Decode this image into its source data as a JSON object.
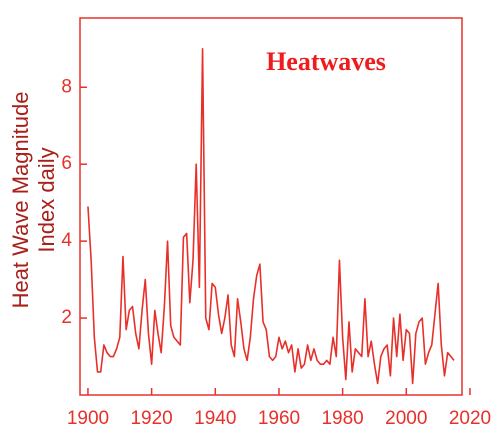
{
  "chart_data": {
    "type": "line",
    "title": "Heatwaves",
    "ylabel": [
      "Heat Wave Magnitude",
      "Index daily"
    ],
    "color": "#e8302a",
    "grid": false,
    "xlim": [
      1897.5,
      2017.5
    ],
    "xticks": [
      1900,
      1920,
      1940,
      1960,
      1980,
      2000,
      2020
    ],
    "ylim": [
      0,
      9.8
    ],
    "yticks": [
      2,
      4,
      6,
      8
    ],
    "x": [
      1900,
      1901,
      1902,
      1903,
      1904,
      1905,
      1906,
      1907,
      1908,
      1909,
      1910,
      1911,
      1912,
      1913,
      1914,
      1915,
      1916,
      1917,
      1918,
      1919,
      1920,
      1921,
      1922,
      1923,
      1924,
      1925,
      1926,
      1927,
      1928,
      1929,
      1930,
      1931,
      1932,
      1933,
      1934,
      1935,
      1936,
      1937,
      1938,
      1939,
      1940,
      1941,
      1942,
      1943,
      1944,
      1945,
      1946,
      1947,
      1948,
      1949,
      1950,
      1951,
      1952,
      1953,
      1954,
      1955,
      1956,
      1957,
      1958,
      1959,
      1960,
      1961,
      1962,
      1963,
      1964,
      1965,
      1966,
      1967,
      1968,
      1969,
      1970,
      1971,
      1972,
      1973,
      1974,
      1975,
      1976,
      1977,
      1978,
      1979,
      1980,
      1981,
      1982,
      1983,
      1984,
      1985,
      1986,
      1987,
      1988,
      1989,
      1990,
      1991,
      1992,
      1993,
      1994,
      1995,
      1996,
      1997,
      1998,
      1999,
      2000,
      2001,
      2002,
      2003,
      2004,
      2005,
      2006,
      2007,
      2008,
      2009,
      2010,
      2011,
      2012,
      2013,
      2014,
      2015
    ],
    "series": [
      {
        "name": "Heatwaves",
        "color": "#e8302a",
        "values": [
          4.9,
          3.5,
          1.5,
          0.6,
          0.6,
          1.3,
          1.1,
          1.0,
          1.0,
          1.2,
          1.5,
          3.6,
          1.7,
          2.2,
          2.3,
          1.6,
          1.2,
          2.2,
          3.0,
          1.6,
          0.8,
          2.2,
          1.6,
          1.1,
          2.3,
          4.0,
          1.8,
          1.5,
          1.4,
          1.3,
          4.1,
          4.2,
          2.4,
          3.5,
          6.0,
          2.8,
          9.0,
          2.0,
          1.7,
          2.9,
          2.8,
          2.1,
          1.6,
          2.0,
          2.6,
          1.3,
          1.0,
          2.5,
          1.9,
          1.2,
          0.9,
          1.5,
          2.5,
          3.1,
          3.4,
          1.9,
          1.7,
          1.0,
          0.9,
          1.0,
          1.5,
          1.2,
          1.4,
          1.1,
          1.3,
          0.6,
          1.2,
          0.7,
          0.8,
          1.3,
          0.9,
          1.2,
          0.9,
          0.8,
          0.8,
          0.9,
          0.8,
          1.5,
          1.0,
          3.5,
          1.5,
          0.4,
          1.9,
          0.6,
          1.2,
          1.1,
          1.0,
          2.5,
          1.0,
          1.4,
          0.8,
          0.3,
          1.0,
          1.2,
          1.3,
          0.5,
          2.0,
          1.0,
          2.1,
          0.9,
          1.7,
          1.6,
          0.3,
          1.6,
          1.9,
          2.0,
          0.8,
          1.1,
          1.3,
          2.1,
          2.9,
          1.3,
          0.5,
          1.1,
          1.0,
          0.9
        ]
      }
    ]
  }
}
